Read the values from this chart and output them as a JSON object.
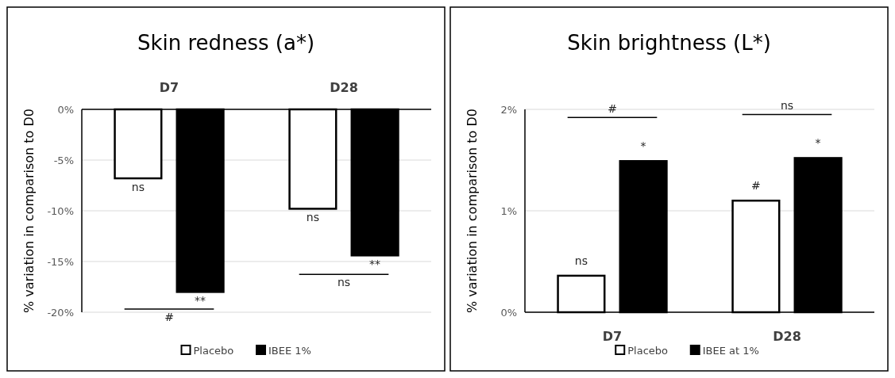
{
  "chart_data": [
    {
      "type": "bar",
      "title": "Skin redness (a*)",
      "ylabel": "% variation in comparison to D0",
      "categories": [
        "D7",
        "D28"
      ],
      "series": [
        {
          "name": "Placebo",
          "color": "#ffffff",
          "values": [
            -6.8,
            -9.8
          ],
          "value_labels": [
            "ns",
            "ns"
          ]
        },
        {
          "name": "IBEE 1%",
          "color": "#000000",
          "values": [
            -18.0,
            -14.4
          ],
          "value_labels": [
            "**",
            "**"
          ]
        }
      ],
      "ylim": [
        -20,
        0
      ],
      "yticks": [
        {
          "value": -20,
          "label": "-20%"
        },
        {
          "value": -15,
          "label": "-15%"
        },
        {
          "value": -10,
          "label": "-10%"
        },
        {
          "value": -5,
          "label": "-5%"
        },
        {
          "value": 0,
          "label": "0%"
        }
      ],
      "annotations": [
        "#",
        "ns"
      ],
      "grid": "y",
      "legend": "bottom"
    },
    {
      "type": "bar",
      "title": "Skin brightness (L*)",
      "ylabel": "% variation in comparison to D0",
      "categories": [
        "D7",
        "D28"
      ],
      "series": [
        {
          "name": "Placebo",
          "color": "#ffffff",
          "values": [
            0.36,
            1.1
          ],
          "value_labels": [
            "ns",
            "#"
          ]
        },
        {
          "name": "IBEE at 1%",
          "color": "#000000",
          "values": [
            1.49,
            1.52
          ],
          "value_labels": [
            "*",
            "*"
          ]
        }
      ],
      "ylim": [
        0,
        2
      ],
      "yticks": [
        {
          "value": 0,
          "label": "0%"
        },
        {
          "value": 1,
          "label": "1%"
        },
        {
          "value": 2,
          "label": "2%"
        }
      ],
      "annotations": [
        "#",
        "ns"
      ],
      "grid": "y",
      "legend": "bottom"
    }
  ]
}
